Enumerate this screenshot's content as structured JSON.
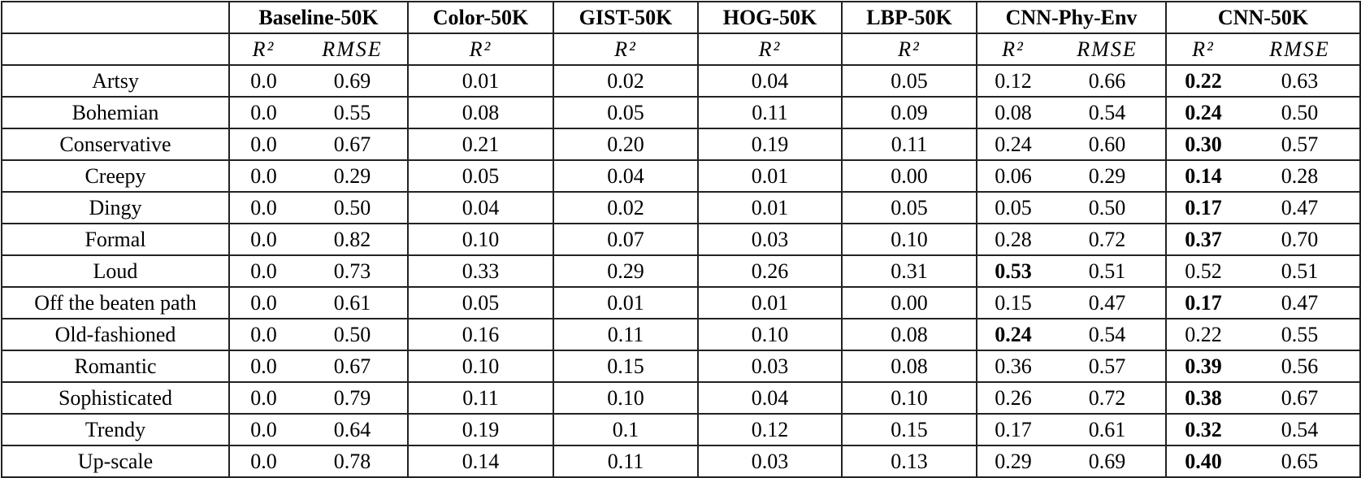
{
  "table": {
    "groups": [
      {
        "name": "Baseline-50K",
        "metrics": [
          "R²",
          "RMSE"
        ]
      },
      {
        "name": "Color-50K",
        "metrics": [
          "R²"
        ]
      },
      {
        "name": "GIST-50K",
        "metrics": [
          "R²"
        ]
      },
      {
        "name": "HOG-50K",
        "metrics": [
          "R²"
        ]
      },
      {
        "name": "LBP-50K",
        "metrics": [
          "R²"
        ]
      },
      {
        "name": "CNN-Phy-Env",
        "metrics": [
          "R²",
          "RMSE"
        ]
      },
      {
        "name": "CNN-50K",
        "metrics": [
          "R²",
          "RMSE"
        ]
      }
    ],
    "rows": [
      {
        "label": "Artsy",
        "cells": [
          "0.0",
          "0.69",
          "0.01",
          "0.02",
          "0.04",
          "0.05",
          "0.12",
          "0.66",
          "0.22",
          "0.63"
        ],
        "bold": 8
      },
      {
        "label": "Bohemian",
        "cells": [
          "0.0",
          "0.55",
          "0.08",
          "0.05",
          "0.11",
          "0.09",
          "0.08",
          "0.54",
          "0.24",
          "0.50"
        ],
        "bold": 8
      },
      {
        "label": "Conservative",
        "cells": [
          "0.0",
          "0.67",
          "0.21",
          "0.20",
          "0.19",
          "0.11",
          "0.24",
          "0.60",
          "0.30",
          "0.57"
        ],
        "bold": 8
      },
      {
        "label": "Creepy",
        "cells": [
          "0.0",
          "0.29",
          "0.05",
          "0.04",
          "0.01",
          "0.00",
          "0.06",
          "0.29",
          "0.14",
          "0.28"
        ],
        "bold": 8
      },
      {
        "label": "Dingy",
        "cells": [
          "0.0",
          "0.50",
          "0.04",
          "0.02",
          "0.01",
          "0.05",
          "0.05",
          "0.50",
          "0.17",
          "0.47"
        ],
        "bold": 8
      },
      {
        "label": "Formal",
        "cells": [
          "0.0",
          "0.82",
          "0.10",
          "0.07",
          "0.03",
          "0.10",
          "0.28",
          "0.72",
          "0.37",
          "0.70"
        ],
        "bold": 8
      },
      {
        "label": "Loud",
        "cells": [
          "0.0",
          "0.73",
          "0.33",
          "0.29",
          "0.26",
          "0.31",
          "0.53",
          "0.51",
          "0.52",
          "0.51"
        ],
        "bold": 6
      },
      {
        "label": "Off the beaten path",
        "cells": [
          "0.0",
          "0.61",
          "0.05",
          "0.01",
          "0.01",
          "0.00",
          "0.15",
          "0.47",
          "0.17",
          "0.47"
        ],
        "bold": 8
      },
      {
        "label": "Old-fashioned",
        "cells": [
          "0.0",
          "0.50",
          "0.16",
          "0.11",
          "0.10",
          "0.08",
          "0.24",
          "0.54",
          "0.22",
          "0.55"
        ],
        "bold": 6
      },
      {
        "label": "Romantic",
        "cells": [
          "0.0",
          "0.67",
          "0.10",
          "0.15",
          "0.03",
          "0.08",
          "0.36",
          "0.57",
          "0.39",
          "0.56"
        ],
        "bold": 8
      },
      {
        "label": "Sophisticated",
        "cells": [
          "0.0",
          "0.79",
          "0.11",
          "0.10",
          "0.04",
          "0.10",
          "0.26",
          "0.72",
          "0.38",
          "0.67"
        ],
        "bold": 8
      },
      {
        "label": "Trendy",
        "cells": [
          "0.0",
          "0.64",
          "0.19",
          "0.1",
          "0.12",
          "0.15",
          "0.17",
          "0.61",
          "0.32",
          "0.54"
        ],
        "bold": 8
      },
      {
        "label": "Up-scale",
        "cells": [
          "0.0",
          "0.78",
          "0.14",
          "0.11",
          "0.03",
          "0.13",
          "0.29",
          "0.69",
          "0.40",
          "0.65"
        ],
        "bold": 8
      }
    ]
  }
}
